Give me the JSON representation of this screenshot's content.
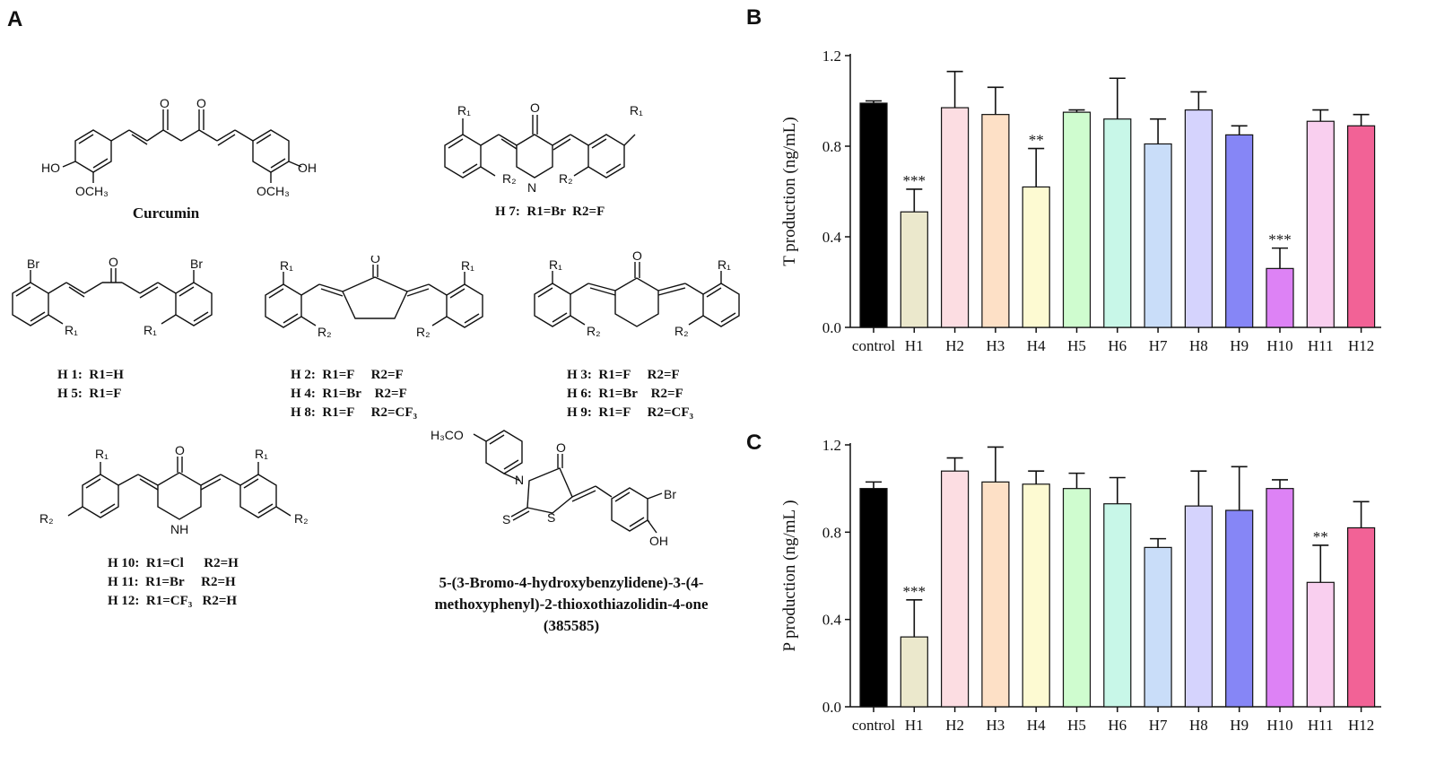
{
  "panels": {
    "a": "A",
    "b": "B",
    "c": "C"
  },
  "structures": {
    "curcumin_name": "Curcumin",
    "h7_caption": "H 7:  R1=Br  R2=F",
    "h1_caption": "H 1:  R1=H\nH 5:  R1=F",
    "h2_caption": "H 2:  R1=F     R2=F\nH 4:  R1=Br    R2=F\nH 8:  R1=F     R2=CF₃",
    "h3_caption": "H 3:  R1=F     R2=F\nH 6:  R1=Br    R2=F\nH 9:  R1=F     R2=CF₃",
    "h10_caption": "H 10:  R1=Cl      R2=H\nH 11:  R1=Br     R2=H\nH 12:  R1=CF₃   R2=H",
    "compound_name": "5-(3-Bromo-4-hydroxybenzylidene)-3-(4-\nmethoxyphenyl)-2-thioxothiazolidin-4-one\n(385585)",
    "atoms": {
      "o": "O",
      "ho": "HO",
      "oh": "OH",
      "och3": "OCH₃",
      "br": "Br",
      "r1": "R₁",
      "r2": "R₂",
      "nh": "NH",
      "n": "N",
      "h3co": "H₃CO",
      "s": "S"
    }
  },
  "chart_data": [
    {
      "panel": "B",
      "type": "bar",
      "ylabel": "T production (ng/mL)",
      "ylim": [
        0,
        1.2
      ],
      "yticks": [
        "0.0",
        "0.4",
        "0.8",
        "1.2"
      ],
      "categories": [
        "control",
        "H1",
        "H2",
        "H3",
        "H4",
        "H5",
        "H6",
        "H7",
        "H8",
        "H9",
        "H10",
        "H11",
        "H12"
      ],
      "values": [
        0.99,
        0.51,
        0.97,
        0.94,
        0.62,
        0.95,
        0.92,
        0.81,
        0.96,
        0.85,
        0.26,
        0.91,
        0.89
      ],
      "errors": [
        0.01,
        0.1,
        0.16,
        0.12,
        0.17,
        0.01,
        0.18,
        0.11,
        0.08,
        0.04,
        0.09,
        0.05,
        0.05
      ],
      "significance": [
        "",
        "***",
        "",
        "",
        "**",
        "",
        "",
        "",
        "",
        "",
        "***",
        "",
        ""
      ],
      "colors": [
        "#000000",
        "#ebe8cc",
        "#fcdde2",
        "#fde0c6",
        "#fdfad2",
        "#cffccf",
        "#c8f7e8",
        "#c9ddf9",
        "#d5d3fd",
        "#8686f6",
        "#dd82f5",
        "#f9cfef",
        "#f26296"
      ]
    },
    {
      "panel": "C",
      "type": "bar",
      "ylabel": "P production (ng/mL )",
      "ylim": [
        0,
        1.2
      ],
      "yticks": [
        "0.0",
        "0.4",
        "0.8",
        "1.2"
      ],
      "categories": [
        "control",
        "H1",
        "H2",
        "H3",
        "H4",
        "H5",
        "H6",
        "H7",
        "H8",
        "H9",
        "H10",
        "H11",
        "H12"
      ],
      "values": [
        1.0,
        0.32,
        1.08,
        1.03,
        1.02,
        1.0,
        0.93,
        0.73,
        0.92,
        0.9,
        1.0,
        0.57,
        0.82
      ],
      "errors": [
        0.03,
        0.17,
        0.06,
        0.16,
        0.06,
        0.07,
        0.12,
        0.04,
        0.16,
        0.2,
        0.04,
        0.17,
        0.12
      ],
      "significance": [
        "",
        "***",
        "",
        "",
        "",
        "",
        "",
        "",
        "",
        "",
        "",
        "**",
        ""
      ],
      "colors": [
        "#000000",
        "#ebe8cc",
        "#fcdde2",
        "#fde0c6",
        "#fdfad2",
        "#cffccf",
        "#c8f7e8",
        "#c9ddf9",
        "#d5d3fd",
        "#8686f6",
        "#dd82f5",
        "#f9cfef",
        "#f26296"
      ]
    }
  ]
}
